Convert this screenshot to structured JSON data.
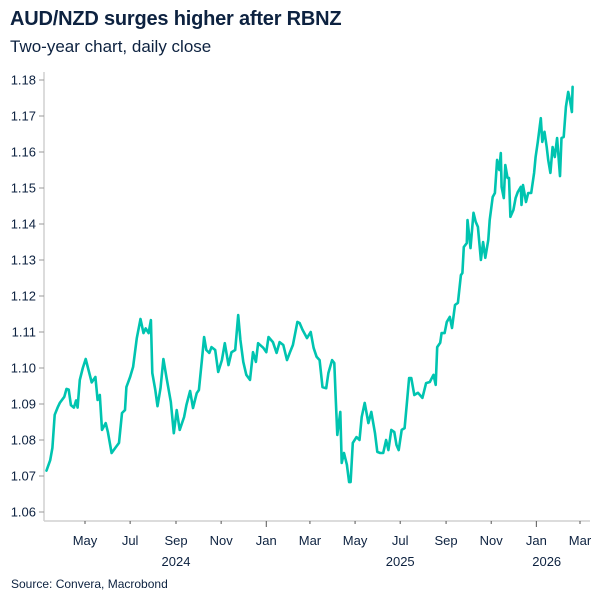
{
  "header": {
    "title": "AUD/NZD surges higher after RBNZ",
    "subtitle": "Two-year chart, daily close"
  },
  "footer": {
    "source": "Source: Convera, Macrobond"
  },
  "colors": {
    "line": "#00c4b0",
    "text": "#0d2240",
    "axis": "#d0d0d0"
  },
  "chart_data": {
    "type": "line",
    "title": "AUD/NZD surges higher after RBNZ",
    "subtitle": "Two-year chart, daily close",
    "xlabel": "",
    "ylabel": "",
    "ylim": [
      1.06,
      1.18
    ],
    "xlim": [
      "2024-03-08",
      "2026-03-12"
    ],
    "grid": false,
    "legend": "none",
    "y_ticks": [
      "1.06",
      "1.07",
      "1.08",
      "1.09",
      "1.10",
      "1.11",
      "1.12",
      "1.13",
      "1.14",
      "1.15",
      "1.16",
      "1.17",
      "1.18"
    ],
    "x_ticks": [
      {
        "date": "2024-05-01",
        "label": "May"
      },
      {
        "date": "2024-07-01",
        "label": "Jul"
      },
      {
        "date": "2024-09-01",
        "label": "Sep"
      },
      {
        "date": "2024-11-01",
        "label": "Nov"
      },
      {
        "date": "2025-01-01",
        "label": "Jan"
      },
      {
        "date": "2025-03-01",
        "label": "Mar"
      },
      {
        "date": "2025-05-01",
        "label": "May"
      },
      {
        "date": "2025-07-01",
        "label": "Jul"
      },
      {
        "date": "2025-09-01",
        "label": "Sep"
      },
      {
        "date": "2025-11-01",
        "label": "Nov"
      },
      {
        "date": "2026-01-01",
        "label": "Jan"
      },
      {
        "date": "2026-03-01",
        "label": "Mar"
      }
    ],
    "year_labels": [
      {
        "date": "2024-09-01",
        "label": "2024"
      },
      {
        "date": "2025-07-01",
        "label": "2025"
      },
      {
        "date": "2026-01-15",
        "label": "2026"
      }
    ],
    "series": [
      {
        "x": [
          "2024-03-10",
          "2024-03-15",
          "2024-03-18",
          "2024-03-21",
          "2024-03-25",
          "2024-03-28",
          "2024-04-03",
          "2024-04-06",
          "2024-04-09",
          "2024-04-12",
          "2024-04-16",
          "2024-04-19",
          "2024-04-21",
          "2024-04-24",
          "2024-04-28",
          "2024-05-02",
          "2024-05-05",
          "2024-05-10",
          "2024-05-15",
          "2024-05-18",
          "2024-05-21",
          "2024-05-24",
          "2024-05-29",
          "2024-06-01",
          "2024-06-06",
          "2024-06-11",
          "2024-06-16",
          "2024-06-20",
          "2024-06-24",
          "2024-06-26",
          "2024-07-01",
          "2024-07-05",
          "2024-07-10",
          "2024-07-15",
          "2024-07-19",
          "2024-07-22",
          "2024-07-26",
          "2024-07-29",
          "2024-07-31",
          "2024-08-04",
          "2024-08-07",
          "2024-08-11",
          "2024-08-15",
          "2024-08-19",
          "2024-08-25",
          "2024-08-29",
          "2024-09-02",
          "2024-09-06",
          "2024-09-12",
          "2024-09-15",
          "2024-09-20",
          "2024-09-24",
          "2024-09-29",
          "2024-10-02",
          "2024-10-06",
          "2024-10-09",
          "2024-10-12",
          "2024-10-16",
          "2024-10-19",
          "2024-10-24",
          "2024-10-28",
          "2024-11-02",
          "2024-11-06",
          "2024-11-11",
          "2024-11-15",
          "2024-11-20",
          "2024-11-24",
          "2024-11-27",
          "2024-12-01",
          "2024-12-05",
          "2024-12-10",
          "2024-12-14",
          "2024-12-18",
          "2024-12-21",
          "2024-12-28",
          "2025-01-01",
          "2025-01-04",
          "2025-01-10",
          "2025-01-15",
          "2025-01-19",
          "2025-01-24",
          "2025-01-29",
          "2025-02-02",
          "2025-02-06",
          "2025-02-12",
          "2025-02-15",
          "2025-02-19",
          "2025-02-25",
          "2025-03-02",
          "2025-03-06",
          "2025-03-10",
          "2025-03-14",
          "2025-03-18",
          "2025-03-23",
          "2025-03-26",
          "2025-03-31",
          "2025-04-03",
          "2025-04-05",
          "2025-04-07",
          "2025-04-11",
          "2025-04-13",
          "2025-04-16",
          "2025-04-20",
          "2025-04-23",
          "2025-04-25",
          "2025-04-28",
          "2025-05-03",
          "2025-05-07",
          "2025-05-10",
          "2025-05-14",
          "2025-05-19",
          "2025-05-23",
          "2025-05-28",
          "2025-05-31",
          "2025-06-04",
          "2025-06-08",
          "2025-06-12",
          "2025-06-15",
          "2025-06-19",
          "2025-06-23",
          "2025-06-26",
          "2025-06-29",
          "2025-07-03",
          "2025-07-07",
          "2025-07-10",
          "2025-07-13",
          "2025-07-16",
          "2025-07-20",
          "2025-07-25",
          "2025-07-31",
          "2025-08-05",
          "2025-08-10",
          "2025-08-15",
          "2025-08-18",
          "2025-08-20",
          "2025-08-24",
          "2025-08-26",
          "2025-08-30",
          "2025-09-02",
          "2025-09-06",
          "2025-09-09",
          "2025-09-13",
          "2025-09-17",
          "2025-09-21",
          "2025-09-23",
          "2025-09-25",
          "2025-09-29",
          "2025-09-30",
          "2025-10-04",
          "2025-10-08",
          "2025-10-11",
          "2025-10-14",
          "2025-10-18",
          "2025-10-21",
          "2025-10-24",
          "2025-10-28",
          "2025-10-30",
          "2025-11-03",
          "2025-11-06",
          "2025-11-09",
          "2025-11-12",
          "2025-11-14",
          "2025-11-15",
          "2025-11-18",
          "2025-11-20",
          "2025-11-23",
          "2025-11-25",
          "2025-11-27",
          "2025-12-01",
          "2025-12-04",
          "2025-12-07",
          "2025-12-11",
          "2025-12-12",
          "2025-12-14",
          "2025-12-18",
          "2025-12-21",
          "2025-12-25",
          "2025-12-29",
          "2025-12-31",
          "2026-01-03",
          "2026-01-07",
          "2026-01-09",
          "2026-01-12",
          "2026-01-15",
          "2026-01-17",
          "2026-01-20",
          "2026-01-23",
          "2026-01-26",
          "2026-01-29",
          "2026-02-02",
          "2026-02-04",
          "2026-02-07",
          "2026-02-10",
          "2026-02-13",
          "2026-02-15",
          "2026-02-18",
          "2026-02-19"
        ],
        "y": [
          1.0715,
          1.0744,
          1.0778,
          1.087,
          1.089,
          1.0903,
          1.092,
          1.0942,
          1.094,
          1.0897,
          1.089,
          1.091,
          1.089,
          1.0967,
          1.1,
          1.1025,
          1.1,
          1.096,
          1.0975,
          1.0911,
          1.0925,
          1.0828,
          1.0847,
          1.0822,
          1.0764,
          1.0778,
          1.0792,
          1.0875,
          1.0883,
          1.0947,
          1.0975,
          1.1003,
          1.1083,
          1.1136,
          1.1097,
          1.111,
          1.1097,
          1.1133,
          1.0986,
          1.0939,
          1.0894,
          1.0944,
          1.1025,
          1.0975,
          1.0906,
          1.0819,
          1.0883,
          1.0828,
          1.0864,
          1.0897,
          1.0936,
          1.0889,
          1.093,
          1.0939,
          1.1022,
          1.1086,
          1.105,
          1.1042,
          1.1058,
          1.105,
          1.0989,
          1.1022,
          1.1069,
          1.1008,
          1.1044,
          1.105,
          1.1147,
          1.1078,
          1.1017,
          1.0981,
          1.0967,
          1.1044,
          1.1017,
          1.1069,
          1.1056,
          1.1044,
          1.1086,
          1.1072,
          1.1042,
          1.1072,
          1.1064,
          1.1022,
          1.1044,
          1.1064,
          1.1128,
          1.1125,
          1.1106,
          1.1083,
          1.11,
          1.1056,
          1.1031,
          1.1022,
          1.0947,
          1.0944,
          1.0986,
          1.1022,
          1.1014,
          1.0911,
          1.0814,
          1.0878,
          1.0736,
          1.0764,
          1.0731,
          1.0683,
          1.0683,
          1.0792,
          1.0808,
          1.08,
          1.0864,
          1.0903,
          1.0847,
          1.0878,
          1.0819,
          1.0767,
          1.0764,
          1.0764,
          1.08,
          1.0772,
          1.0828,
          1.0822,
          1.0786,
          1.0772,
          1.0828,
          1.0833,
          1.0903,
          1.0972,
          1.0972,
          1.0925,
          1.0931,
          1.0917,
          1.0958,
          1.0961,
          1.0981,
          1.0953,
          1.1058,
          1.107,
          1.1097,
          1.1097,
          1.1128,
          1.1142,
          1.1111,
          1.1175,
          1.1181,
          1.1258,
          1.1264,
          1.1336,
          1.1347,
          1.1411,
          1.1333,
          1.1431,
          1.1406,
          1.1392,
          1.13,
          1.135,
          1.1306,
          1.1356,
          1.1411,
          1.1475,
          1.1486,
          1.1578,
          1.155,
          1.1597,
          1.1503,
          1.1472,
          1.1564,
          1.1528,
          1.1528,
          1.142,
          1.1439,
          1.1472,
          1.1489,
          1.1503,
          1.1453,
          1.1508,
          1.1461,
          1.1486,
          1.1486,
          1.1542,
          1.1586,
          1.1628,
          1.1694,
          1.1628,
          1.1656,
          1.1614,
          1.1578,
          1.1542,
          1.1614,
          1.1586,
          1.1639,
          1.1533,
          1.1639,
          1.1642,
          1.1725,
          1.1767,
          1.175,
          1.1711,
          1.1781
        ]
      }
    ]
  }
}
